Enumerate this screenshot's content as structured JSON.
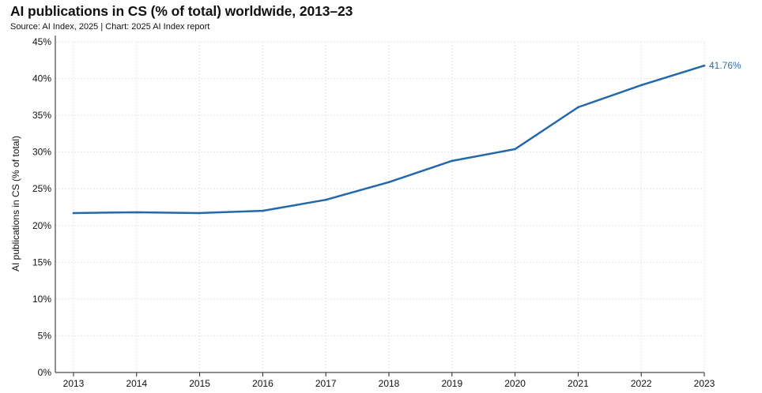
{
  "chart_data": {
    "type": "line",
    "title": "AI publications in CS (% of total) worldwide, 2013–23",
    "subtitle": "Source: AI Index, 2025 | Chart: 2025 AI Index report",
    "xlabel": "",
    "ylabel": "AI publications in CS (% of total)",
    "x": [
      "2013",
      "2014",
      "2015",
      "2016",
      "2017",
      "2018",
      "2019",
      "2020",
      "2021",
      "2022",
      "2023"
    ],
    "series": [
      {
        "name": "AI publications in CS (% of total)",
        "color": "#2368a9",
        "values": [
          21.7,
          21.8,
          21.7,
          22.0,
          23.5,
          25.9,
          28.8,
          30.4,
          36.1,
          39.1,
          41.76
        ],
        "end_label": "41.76%"
      }
    ],
    "ylim": [
      0,
      45
    ],
    "yticks": [
      0,
      5,
      10,
      15,
      20,
      25,
      30,
      35,
      40,
      45
    ],
    "ytick_labels": [
      "0%",
      "5%",
      "10%",
      "15%",
      "20%",
      "25%",
      "30%",
      "35%",
      "40%",
      "45%"
    ],
    "grid": true,
    "gridline_color": "#e6e6e6"
  }
}
